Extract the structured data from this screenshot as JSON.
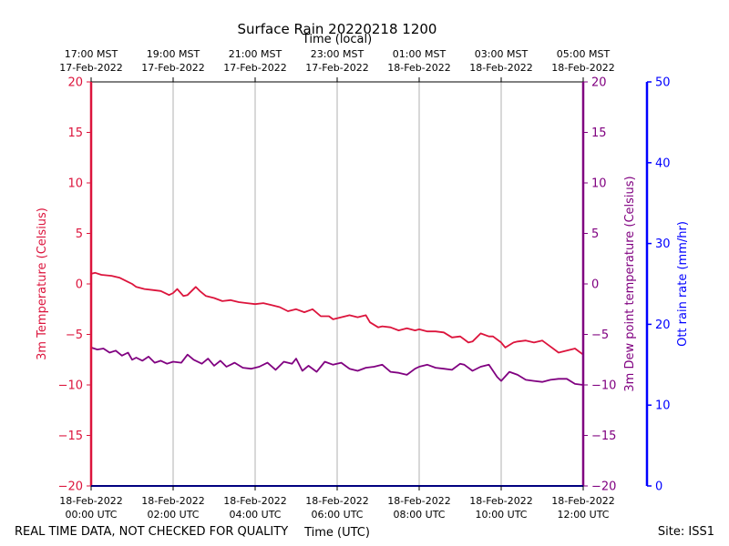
{
  "chart_data": {
    "type": "line",
    "title": "Surface Rain 20220218 1200",
    "top_xlabel": "Time (local)",
    "xlabel": "Time (UTC)",
    "footer_left": "REAL TIME DATA, NOT CHECKED FOR QUALITY",
    "footer_right": "Site: ISS1",
    "xlim": [
      0,
      12
    ],
    "x_ticks": [
      0,
      2,
      4,
      6,
      8,
      10,
      12
    ],
    "bottom_tick_labels": [
      [
        "18-Feb-2022",
        "00:00 UTC"
      ],
      [
        "18-Feb-2022",
        "02:00 UTC"
      ],
      [
        "18-Feb-2022",
        "04:00 UTC"
      ],
      [
        "18-Feb-2022",
        "06:00 UTC"
      ],
      [
        "18-Feb-2022",
        "08:00 UTC"
      ],
      [
        "18-Feb-2022",
        "10:00 UTC"
      ],
      [
        "18-Feb-2022",
        "12:00 UTC"
      ]
    ],
    "top_tick_labels": [
      [
        "17:00 MST",
        "17-Feb-2022"
      ],
      [
        "19:00 MST",
        "17-Feb-2022"
      ],
      [
        "21:00 MST",
        "17-Feb-2022"
      ],
      [
        "23:00 MST",
        "17-Feb-2022"
      ],
      [
        "01:00 MST",
        "18-Feb-2022"
      ],
      [
        "03:00 MST",
        "18-Feb-2022"
      ],
      [
        "05:00 MST",
        "18-Feb-2022"
      ]
    ],
    "y_left": {
      "label": "3m Temperature (Celsius)",
      "lim": [
        -20,
        20
      ],
      "ticks": [
        -20,
        -15,
        -10,
        -5,
        0,
        5,
        10,
        15,
        20
      ],
      "color": "#dc143c"
    },
    "y_right": {
      "label": "3m Dew point temperature (Celsius)",
      "lim": [
        -20,
        20
      ],
      "ticks": [
        -20,
        -15,
        -10,
        -5,
        0,
        5,
        10,
        15,
        20
      ],
      "color": "#800080"
    },
    "y_rain": {
      "label": "Ott rain rate (mm/hr)",
      "lim": [
        0,
        50
      ],
      "ticks": [
        0,
        10,
        20,
        30,
        40,
        50
      ],
      "color": "#0000ff"
    },
    "series": [
      {
        "name": "3m Temperature",
        "axis": "left",
        "color": "#dc143c",
        "x": [
          0.0,
          0.1,
          0.25,
          0.5,
          0.7,
          0.9,
          1.0,
          1.1,
          1.3,
          1.5,
          1.7,
          1.9,
          2.0,
          2.1,
          2.25,
          2.35,
          2.55,
          2.65,
          2.8,
          3.0,
          3.2,
          3.4,
          3.6,
          3.8,
          4.0,
          4.2,
          4.4,
          4.6,
          4.8,
          5.0,
          5.2,
          5.4,
          5.6,
          5.8,
          5.9,
          6.1,
          6.3,
          6.5,
          6.7,
          6.8,
          7.0,
          7.1,
          7.3,
          7.5,
          7.7,
          7.9,
          8.0,
          8.2,
          8.4,
          8.6,
          8.8,
          9.0,
          9.2,
          9.3,
          9.5,
          9.7,
          9.8,
          10.0,
          10.1,
          10.3,
          10.4,
          10.6,
          10.8,
          11.0,
          11.2,
          11.4,
          11.6,
          11.8,
          12.0
        ],
        "values": [
          1.0,
          1.1,
          0.9,
          0.8,
          0.6,
          0.2,
          0.0,
          -0.3,
          -0.5,
          -0.6,
          -0.7,
          -1.1,
          -0.9,
          -0.5,
          -1.2,
          -1.1,
          -0.3,
          -0.7,
          -1.2,
          -1.4,
          -1.7,
          -1.6,
          -1.8,
          -1.9,
          -2.0,
          -1.9,
          -2.1,
          -2.3,
          -2.7,
          -2.5,
          -2.8,
          -2.5,
          -3.2,
          -3.2,
          -3.5,
          -3.3,
          -3.1,
          -3.3,
          -3.1,
          -3.8,
          -4.3,
          -4.2,
          -4.3,
          -4.6,
          -4.4,
          -4.6,
          -4.5,
          -4.7,
          -4.7,
          -4.8,
          -5.3,
          -5.2,
          -5.8,
          -5.7,
          -4.9,
          -5.2,
          -5.2,
          -5.8,
          -6.3,
          -5.8,
          -5.7,
          -5.6,
          -5.8,
          -5.6,
          -6.2,
          -6.8,
          -6.6,
          -6.4,
          -7.0
        ]
      },
      {
        "name": "3m Dew point temperature",
        "axis": "right",
        "color": "#800080",
        "x": [
          0.0,
          0.15,
          0.3,
          0.45,
          0.6,
          0.75,
          0.9,
          1.0,
          1.1,
          1.25,
          1.4,
          1.55,
          1.7,
          1.85,
          2.0,
          2.2,
          2.35,
          2.5,
          2.7,
          2.85,
          3.0,
          3.15,
          3.3,
          3.5,
          3.7,
          3.9,
          4.1,
          4.3,
          4.5,
          4.7,
          4.9,
          5.0,
          5.15,
          5.3,
          5.5,
          5.7,
          5.9,
          6.1,
          6.3,
          6.5,
          6.7,
          6.9,
          7.1,
          7.3,
          7.5,
          7.7,
          7.9,
          8.0,
          8.2,
          8.4,
          8.6,
          8.8,
          9.0,
          9.1,
          9.3,
          9.5,
          9.7,
          9.9,
          10.0,
          10.2,
          10.4,
          10.6,
          10.8,
          11.0,
          11.2,
          11.4,
          11.6,
          11.8,
          12.0
        ],
        "values": [
          -6.3,
          -6.5,
          -6.4,
          -6.8,
          -6.6,
          -7.1,
          -6.8,
          -7.5,
          -7.3,
          -7.6,
          -7.2,
          -7.8,
          -7.6,
          -7.9,
          -7.7,
          -7.8,
          -7.0,
          -7.5,
          -7.9,
          -7.4,
          -8.1,
          -7.6,
          -8.2,
          -7.8,
          -8.3,
          -8.4,
          -8.2,
          -7.8,
          -8.5,
          -7.7,
          -7.9,
          -7.4,
          -8.6,
          -8.1,
          -8.7,
          -7.7,
          -8.0,
          -7.8,
          -8.4,
          -8.6,
          -8.3,
          -8.2,
          -8.0,
          -8.7,
          -8.8,
          -9.0,
          -8.4,
          -8.2,
          -8.0,
          -8.3,
          -8.4,
          -8.5,
          -7.9,
          -8.0,
          -8.6,
          -8.2,
          -8.0,
          -9.2,
          -9.6,
          -8.7,
          -9.0,
          -9.5,
          -9.6,
          -9.7,
          -9.5,
          -9.4,
          -9.4,
          -9.9,
          -10.0
        ]
      }
    ]
  }
}
